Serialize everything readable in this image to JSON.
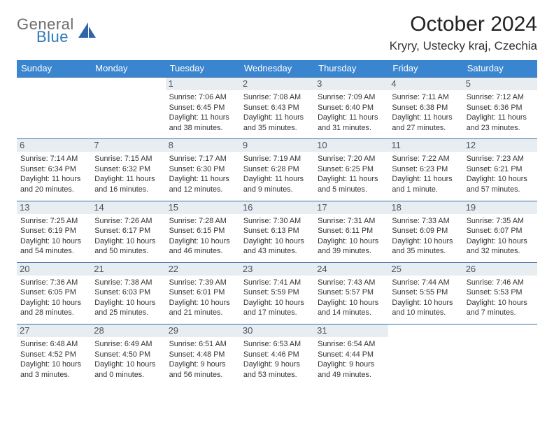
{
  "brand": {
    "word1": "General",
    "word2": "Blue"
  },
  "title": "October 2024",
  "location": "Kryry, Ustecky kraj, Czechia",
  "colors": {
    "header_bg": "#3a85cf",
    "header_text": "#ffffff",
    "row_border": "#3a6fa6",
    "daynum_bg": "#e8edf2",
    "daynum_text": "#4a5560",
    "logo_gray": "#6c6c6c",
    "logo_blue": "#2f78b7",
    "page_bg": "#ffffff"
  },
  "typography": {
    "title_fontsize": 30,
    "location_fontsize": 17,
    "dayheader_fontsize": 13,
    "daynum_fontsize": 13,
    "info_fontsize": 10.8
  },
  "dayHeaders": [
    "Sunday",
    "Monday",
    "Tuesday",
    "Wednesday",
    "Thursday",
    "Friday",
    "Saturday"
  ],
  "firstDayOffset": 2,
  "days": [
    {
      "n": "1",
      "sunrise": "Sunrise: 7:06 AM",
      "sunset": "Sunset: 6:45 PM",
      "daylight": "Daylight: 11 hours and 38 minutes."
    },
    {
      "n": "2",
      "sunrise": "Sunrise: 7:08 AM",
      "sunset": "Sunset: 6:43 PM",
      "daylight": "Daylight: 11 hours and 35 minutes."
    },
    {
      "n": "3",
      "sunrise": "Sunrise: 7:09 AM",
      "sunset": "Sunset: 6:40 PM",
      "daylight": "Daylight: 11 hours and 31 minutes."
    },
    {
      "n": "4",
      "sunrise": "Sunrise: 7:11 AM",
      "sunset": "Sunset: 6:38 PM",
      "daylight": "Daylight: 11 hours and 27 minutes."
    },
    {
      "n": "5",
      "sunrise": "Sunrise: 7:12 AM",
      "sunset": "Sunset: 6:36 PM",
      "daylight": "Daylight: 11 hours and 23 minutes."
    },
    {
      "n": "6",
      "sunrise": "Sunrise: 7:14 AM",
      "sunset": "Sunset: 6:34 PM",
      "daylight": "Daylight: 11 hours and 20 minutes."
    },
    {
      "n": "7",
      "sunrise": "Sunrise: 7:15 AM",
      "sunset": "Sunset: 6:32 PM",
      "daylight": "Daylight: 11 hours and 16 minutes."
    },
    {
      "n": "8",
      "sunrise": "Sunrise: 7:17 AM",
      "sunset": "Sunset: 6:30 PM",
      "daylight": "Daylight: 11 hours and 12 minutes."
    },
    {
      "n": "9",
      "sunrise": "Sunrise: 7:19 AM",
      "sunset": "Sunset: 6:28 PM",
      "daylight": "Daylight: 11 hours and 9 minutes."
    },
    {
      "n": "10",
      "sunrise": "Sunrise: 7:20 AM",
      "sunset": "Sunset: 6:25 PM",
      "daylight": "Daylight: 11 hours and 5 minutes."
    },
    {
      "n": "11",
      "sunrise": "Sunrise: 7:22 AM",
      "sunset": "Sunset: 6:23 PM",
      "daylight": "Daylight: 11 hours and 1 minute."
    },
    {
      "n": "12",
      "sunrise": "Sunrise: 7:23 AM",
      "sunset": "Sunset: 6:21 PM",
      "daylight": "Daylight: 10 hours and 57 minutes."
    },
    {
      "n": "13",
      "sunrise": "Sunrise: 7:25 AM",
      "sunset": "Sunset: 6:19 PM",
      "daylight": "Daylight: 10 hours and 54 minutes."
    },
    {
      "n": "14",
      "sunrise": "Sunrise: 7:26 AM",
      "sunset": "Sunset: 6:17 PM",
      "daylight": "Daylight: 10 hours and 50 minutes."
    },
    {
      "n": "15",
      "sunrise": "Sunrise: 7:28 AM",
      "sunset": "Sunset: 6:15 PM",
      "daylight": "Daylight: 10 hours and 46 minutes."
    },
    {
      "n": "16",
      "sunrise": "Sunrise: 7:30 AM",
      "sunset": "Sunset: 6:13 PM",
      "daylight": "Daylight: 10 hours and 43 minutes."
    },
    {
      "n": "17",
      "sunrise": "Sunrise: 7:31 AM",
      "sunset": "Sunset: 6:11 PM",
      "daylight": "Daylight: 10 hours and 39 minutes."
    },
    {
      "n": "18",
      "sunrise": "Sunrise: 7:33 AM",
      "sunset": "Sunset: 6:09 PM",
      "daylight": "Daylight: 10 hours and 35 minutes."
    },
    {
      "n": "19",
      "sunrise": "Sunrise: 7:35 AM",
      "sunset": "Sunset: 6:07 PM",
      "daylight": "Daylight: 10 hours and 32 minutes."
    },
    {
      "n": "20",
      "sunrise": "Sunrise: 7:36 AM",
      "sunset": "Sunset: 6:05 PM",
      "daylight": "Daylight: 10 hours and 28 minutes."
    },
    {
      "n": "21",
      "sunrise": "Sunrise: 7:38 AM",
      "sunset": "Sunset: 6:03 PM",
      "daylight": "Daylight: 10 hours and 25 minutes."
    },
    {
      "n": "22",
      "sunrise": "Sunrise: 7:39 AM",
      "sunset": "Sunset: 6:01 PM",
      "daylight": "Daylight: 10 hours and 21 minutes."
    },
    {
      "n": "23",
      "sunrise": "Sunrise: 7:41 AM",
      "sunset": "Sunset: 5:59 PM",
      "daylight": "Daylight: 10 hours and 17 minutes."
    },
    {
      "n": "24",
      "sunrise": "Sunrise: 7:43 AM",
      "sunset": "Sunset: 5:57 PM",
      "daylight": "Daylight: 10 hours and 14 minutes."
    },
    {
      "n": "25",
      "sunrise": "Sunrise: 7:44 AM",
      "sunset": "Sunset: 5:55 PM",
      "daylight": "Daylight: 10 hours and 10 minutes."
    },
    {
      "n": "26",
      "sunrise": "Sunrise: 7:46 AM",
      "sunset": "Sunset: 5:53 PM",
      "daylight": "Daylight: 10 hours and 7 minutes."
    },
    {
      "n": "27",
      "sunrise": "Sunrise: 6:48 AM",
      "sunset": "Sunset: 4:52 PM",
      "daylight": "Daylight: 10 hours and 3 minutes."
    },
    {
      "n": "28",
      "sunrise": "Sunrise: 6:49 AM",
      "sunset": "Sunset: 4:50 PM",
      "daylight": "Daylight: 10 hours and 0 minutes."
    },
    {
      "n": "29",
      "sunrise": "Sunrise: 6:51 AM",
      "sunset": "Sunset: 4:48 PM",
      "daylight": "Daylight: 9 hours and 56 minutes."
    },
    {
      "n": "30",
      "sunrise": "Sunrise: 6:53 AM",
      "sunset": "Sunset: 4:46 PM",
      "daylight": "Daylight: 9 hours and 53 minutes."
    },
    {
      "n": "31",
      "sunrise": "Sunrise: 6:54 AM",
      "sunset": "Sunset: 4:44 PM",
      "daylight": "Daylight: 9 hours and 49 minutes."
    }
  ]
}
